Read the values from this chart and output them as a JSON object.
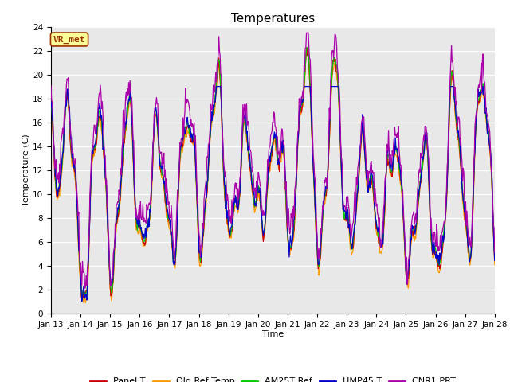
{
  "title": "Temperatures",
  "xlabel": "Time",
  "ylabel": "Temperature (C)",
  "ylim": [
    0,
    24
  ],
  "yticks": [
    0,
    2,
    4,
    6,
    8,
    10,
    12,
    14,
    16,
    18,
    20,
    22,
    24
  ],
  "n_days": 15,
  "x_tick_labels": [
    "Jan 13",
    "Jan 14",
    "Jan 15",
    "Jan 16",
    "Jan 17",
    "Jan 18",
    "Jan 19",
    "Jan 20",
    "Jan 21",
    "Jan 22",
    "Jan 23",
    "Jan 24",
    "Jan 25",
    "Jan 26",
    "Jan 27",
    "Jan 28"
  ],
  "series_colors": {
    "Panel T": "#cc0000",
    "Old Ref Temp": "#ff9900",
    "AM25T Ref": "#00cc00",
    "HMP45 T": "#0000cc",
    "CNR1 PRT": "#aa00aa"
  },
  "line_width": 0.9,
  "bg_color": "#e8e8e8",
  "annotation_text": "VR_met",
  "annotation_color": "#993300",
  "annotation_bg": "#ffff99",
  "title_fontsize": 11,
  "label_fontsize": 8,
  "tick_fontsize": 7.5
}
